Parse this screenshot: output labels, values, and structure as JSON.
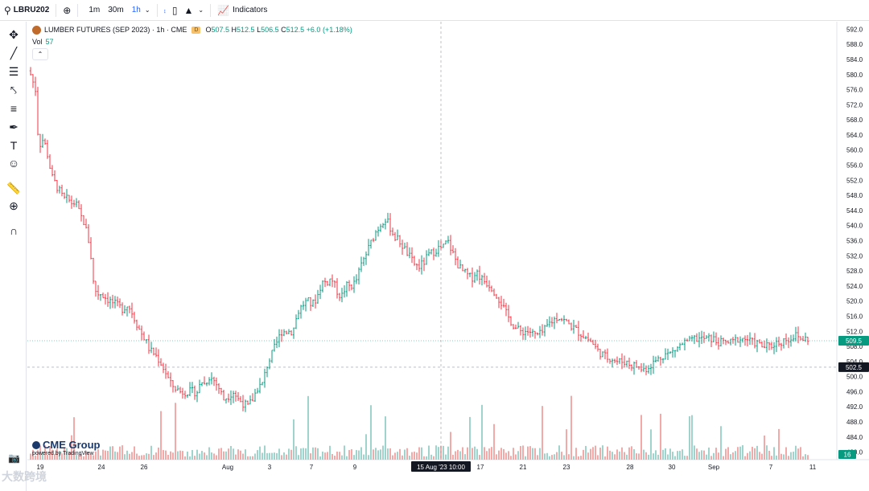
{
  "toolbar": {
    "symbol": "LBRU202",
    "intervals": [
      "1m",
      "30m",
      "1h"
    ],
    "active_interval": "1h",
    "indicators_label": "Indicators"
  },
  "legend": {
    "title": "LUMBER FUTURES (SEP 2023) · 1h · CME",
    "badge": "D",
    "o_label": "O",
    "o": "507.5",
    "h_label": "H",
    "h": "512.5",
    "l_label": "L",
    "l": "506.5",
    "c_label": "C",
    "c": "512.5",
    "change": "+6.0 (+1.18%)",
    "vol_label": "Vol",
    "vol": "57"
  },
  "branding": {
    "cme": "CME Group",
    "powered": "powered by TradingView",
    "watermark": "大数跨境"
  },
  "colors": {
    "up": "#089981",
    "down": "#f23645",
    "up_vol": "#9fd4cc",
    "down_vol": "#f4a9a9",
    "price_badge": "#089981",
    "crosshair_badge": "#131722"
  },
  "chart_data": {
    "type": "candlestick",
    "y_ticks": [
      "592.0",
      "588.0",
      "584.0",
      "580.0",
      "576.0",
      "572.0",
      "568.0",
      "564.0",
      "560.0",
      "556.0",
      "552.0",
      "548.0",
      "544.0",
      "540.0",
      "536.0",
      "532.0",
      "528.0",
      "524.0",
      "520.0",
      "516.0",
      "512.0",
      "508.0",
      "504.0",
      "500.0",
      "496.0",
      "492.0",
      "488.0",
      "484.0",
      "480.0"
    ],
    "x_ticks": [
      "19",
      "24",
      "26",
      "Aug",
      "3",
      "7",
      "9",
      "17",
      "21",
      "23",
      "28",
      "30",
      "Sep",
      "7",
      "11"
    ],
    "current_price": "509.5",
    "crosshair_price": "502.5",
    "crosshair_time": "15 Aug '23  10:00",
    "volume_badge": "16",
    "ylim": [
      478,
      594
    ],
    "path": [
      [
        0,
        581
      ],
      [
        4,
        580
      ],
      [
        10,
        576
      ],
      [
        14,
        561
      ],
      [
        20,
        563
      ],
      [
        26,
        558
      ],
      [
        30,
        553
      ],
      [
        35,
        551
      ],
      [
        40,
        549
      ],
      [
        45,
        547
      ],
      [
        50,
        547
      ],
      [
        55,
        546
      ],
      [
        60,
        546
      ],
      [
        65,
        543
      ],
      [
        70,
        541
      ],
      [
        74,
        538
      ],
      [
        78,
        534
      ],
      [
        82,
        525
      ],
      [
        86,
        522
      ],
      [
        92,
        522
      ],
      [
        97,
        521
      ],
      [
        103,
        520
      ],
      [
        110,
        519
      ],
      [
        118,
        518
      ],
      [
        125,
        519
      ],
      [
        130,
        517
      ],
      [
        136,
        514
      ],
      [
        140,
        512
      ],
      [
        146,
        510
      ],
      [
        152,
        507
      ],
      [
        158,
        506
      ],
      [
        165,
        504
      ],
      [
        172,
        501
      ],
      [
        178,
        498
      ],
      [
        184,
        497
      ],
      [
        190,
        496
      ],
      [
        196,
        496
      ],
      [
        204,
        496
      ],
      [
        212,
        496
      ],
      [
        216,
        499
      ],
      [
        220,
        498
      ],
      [
        226,
        500
      ],
      [
        232,
        499
      ],
      [
        238,
        497
      ],
      [
        244,
        494
      ],
      [
        250,
        495
      ],
      [
        256,
        496
      ],
      [
        262,
        494
      ],
      [
        268,
        493
      ],
      [
        274,
        492
      ],
      [
        280,
        494
      ],
      [
        286,
        497
      ],
      [
        292,
        498
      ],
      [
        298,
        503
      ],
      [
        304,
        506
      ],
      [
        310,
        509
      ],
      [
        316,
        512
      ],
      [
        322,
        512
      ],
      [
        330,
        512
      ],
      [
        336,
        517
      ],
      [
        342,
        519
      ],
      [
        348,
        520
      ],
      [
        354,
        519
      ],
      [
        360,
        521
      ],
      [
        366,
        525
      ],
      [
        372,
        525
      ],
      [
        378,
        526
      ],
      [
        384,
        523
      ],
      [
        390,
        521
      ],
      [
        396,
        524
      ],
      [
        402,
        524
      ],
      [
        408,
        525
      ],
      [
        414,
        529
      ],
      [
        420,
        532
      ],
      [
        426,
        535
      ],
      [
        432,
        538
      ],
      [
        438,
        540
      ],
      [
        444,
        542
      ],
      [
        450,
        540
      ],
      [
        456,
        537
      ],
      [
        462,
        536
      ],
      [
        468,
        534
      ],
      [
        474,
        532
      ],
      [
        480,
        530
      ],
      [
        486,
        529
      ],
      [
        492,
        530
      ],
      [
        498,
        532
      ],
      [
        504,
        533
      ],
      [
        510,
        534
      ],
      [
        516,
        534
      ],
      [
        522,
        536
      ],
      [
        528,
        533
      ],
      [
        534,
        530
      ],
      [
        540,
        528
      ],
      [
        546,
        527
      ],
      [
        552,
        526
      ],
      [
        558,
        528
      ],
      [
        564,
        526
      ],
      [
        570,
        525
      ],
      [
        576,
        524
      ],
      [
        582,
        522
      ],
      [
        588,
        520
      ],
      [
        594,
        517
      ],
      [
        600,
        515
      ],
      [
        606,
        513
      ],
      [
        612,
        512
      ],
      [
        618,
        512
      ],
      [
        624,
        512
      ],
      [
        630,
        511
      ],
      [
        636,
        511
      ],
      [
        642,
        512
      ],
      [
        648,
        514
      ],
      [
        654,
        515
      ],
      [
        660,
        516
      ],
      [
        666,
        515
      ],
      [
        672,
        514
      ],
      [
        678,
        513
      ],
      [
        684,
        512
      ],
      [
        690,
        511
      ],
      [
        696,
        510
      ],
      [
        702,
        509
      ],
      [
        708,
        507
      ],
      [
        714,
        506
      ],
      [
        720,
        505
      ],
      [
        726,
        505
      ],
      [
        732,
        504
      ],
      [
        738,
        504
      ],
      [
        744,
        504
      ],
      [
        750,
        503
      ],
      [
        756,
        503
      ],
      [
        762,
        502
      ],
      [
        768,
        502
      ],
      [
        774,
        503
      ],
      [
        780,
        504
      ],
      [
        786,
        505
      ],
      [
        792,
        506
      ],
      [
        798,
        506
      ],
      [
        804,
        507
      ],
      [
        810,
        508
      ],
      [
        816,
        509
      ],
      [
        822,
        509
      ],
      [
        828,
        510
      ],
      [
        834,
        510
      ],
      [
        840,
        510
      ],
      [
        846,
        510
      ],
      [
        852,
        510
      ],
      [
        858,
        509
      ],
      [
        864,
        509
      ],
      [
        870,
        509
      ],
      [
        876,
        509
      ],
      [
        882,
        510
      ],
      [
        888,
        510
      ],
      [
        894,
        510
      ],
      [
        900,
        509
      ],
      [
        906,
        509
      ],
      [
        912,
        508
      ],
      [
        918,
        508
      ],
      [
        924,
        508
      ],
      [
        930,
        509
      ],
      [
        936,
        509
      ],
      [
        942,
        510
      ],
      [
        948,
        510
      ],
      [
        954,
        511
      ],
      [
        960,
        510
      ],
      [
        966,
        510
      ]
    ]
  }
}
